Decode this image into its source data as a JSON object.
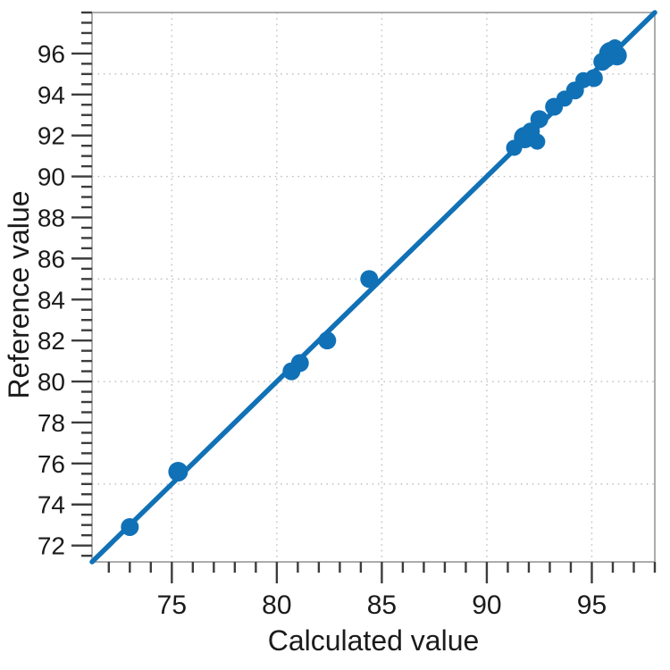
{
  "chart_data": {
    "type": "scatter",
    "title": "",
    "xlabel": "Calculated value",
    "ylabel": "Reference value",
    "xlim": [
      71.2,
      98.0
    ],
    "ylim": [
      71.2,
      98.0
    ],
    "x_major_ticks": [
      75,
      80,
      85,
      90,
      95
    ],
    "x_minor_step": 1,
    "y_major_ticks": [
      72,
      74,
      76,
      78,
      80,
      82,
      84,
      86,
      88,
      90,
      92,
      94,
      96
    ],
    "y_minor_step": 0.5,
    "grid_x": [
      75,
      80,
      85,
      90,
      95
    ],
    "grid_y": [
      75,
      80,
      85,
      90,
      95
    ],
    "grid_on": true,
    "legend": "none",
    "point_color": "#1171b6",
    "line_color": "#1171b6",
    "identity_line": {
      "x1": 71.2,
      "y1": 71.2,
      "x2": 98.0,
      "y2": 98.0,
      "meaning": "y = x"
    },
    "points": [
      {
        "x": 73.0,
        "y": 72.9,
        "r": 10
      },
      {
        "x": 75.3,
        "y": 75.6,
        "r": 11
      },
      {
        "x": 80.7,
        "y": 80.5,
        "r": 10
      },
      {
        "x": 81.1,
        "y": 80.9,
        "r": 10
      },
      {
        "x": 82.4,
        "y": 82.0,
        "r": 10
      },
      {
        "x": 84.4,
        "y": 85.0,
        "r": 10
      },
      {
        "x": 91.3,
        "y": 91.4,
        "r": 9
      },
      {
        "x": 91.8,
        "y": 91.9,
        "r": 12
      },
      {
        "x": 92.1,
        "y": 92.2,
        "r": 10
      },
      {
        "x": 92.4,
        "y": 91.7,
        "r": 9
      },
      {
        "x": 92.5,
        "y": 92.8,
        "r": 10
      },
      {
        "x": 93.2,
        "y": 93.4,
        "r": 10
      },
      {
        "x": 93.7,
        "y": 93.8,
        "r": 9
      },
      {
        "x": 94.2,
        "y": 94.2,
        "r": 10
      },
      {
        "x": 94.6,
        "y": 94.7,
        "r": 9
      },
      {
        "x": 95.1,
        "y": 94.8,
        "r": 10
      },
      {
        "x": 95.5,
        "y": 95.6,
        "r": 10
      },
      {
        "x": 95.7,
        "y": 95.7,
        "r": 9
      },
      {
        "x": 95.9,
        "y": 96.0,
        "r": 13
      },
      {
        "x": 96.2,
        "y": 95.9,
        "r": 11
      },
      {
        "x": 96.1,
        "y": 96.3,
        "r": 9
      }
    ]
  }
}
